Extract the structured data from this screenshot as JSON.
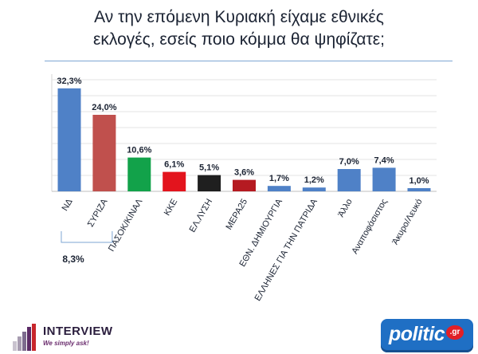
{
  "title_line1": "Αν την επόμενη Κυριακή είχαμε εθνικές",
  "title_line2": "εκλογές, εσείς ποιο κόμμα θα ψηφίζατε;",
  "gap_label": "8,3%",
  "brand_left": {
    "name": "INTERVIEW",
    "tagline": "We simply ask!"
  },
  "brand_right": {
    "name": "politic",
    "tld": ".gr"
  },
  "chart_data": {
    "type": "bar",
    "categories": [
      "ΝΔ",
      "ΣΥΡΙΖΑ",
      "ΠΑΣΟΚ/ΚΙΝΑΛ",
      "ΚΚΕ",
      "ΕΛ.ΛΥΣΗ",
      "ΜΕΡΑ25",
      "ΕΘΝ. ΔΗΜΙΟΥΡΓΙΑ",
      "ΕΛΛΗΝΕΣ ΓΙΑ ΤΗΝ ΠΑΤΡΙΔΑ",
      "Άλλο",
      "Αναποφάσιστος",
      "Άκυρο/Λευκό"
    ],
    "values": [
      32.3,
      24.0,
      10.6,
      6.1,
      5.1,
      3.6,
      1.7,
      1.2,
      7.0,
      7.4,
      1.0
    ],
    "value_labels": [
      "32,3%",
      "24,0%",
      "10,6%",
      "6,1%",
      "5,1%",
      "3,6%",
      "1,7%",
      "1,2%",
      "7,0%",
      "7,4%",
      "1,0%"
    ],
    "colors": [
      "#4f81c7",
      "#c0504d",
      "#12a24a",
      "#e3141d",
      "#1f1f1f",
      "#b51a21",
      "#4f81c7",
      "#4f81c7",
      "#4f81c7",
      "#4f81c7",
      "#4f81c7"
    ],
    "ylim": [
      0,
      35
    ],
    "grid": true,
    "xlabel": "",
    "ylabel": ""
  }
}
